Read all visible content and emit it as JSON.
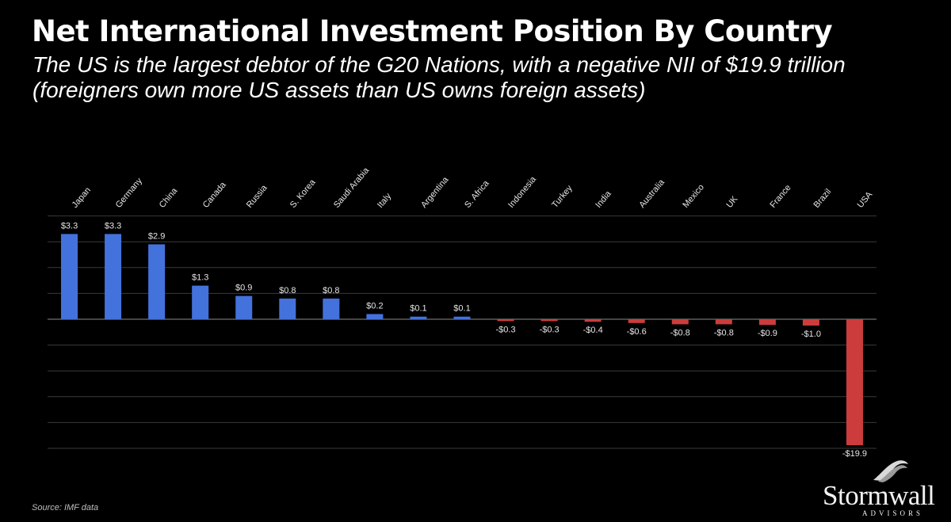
{
  "header": {
    "title": "Net International Investment Position By Country",
    "subtitle": "The US is the largest debtor of the G20 Nations, with a negative NII of $19.9 trillion (foreigners own more US assets than US owns foreign assets)"
  },
  "chart_data": {
    "type": "bar",
    "title": "Net International Investment Position By Country",
    "subtitle": "The US is the largest debtor of the G20 Nations, with a negative NII of $19.9 trillion (foreigners own more US assets than US owns foreign assets)",
    "xlabel": "",
    "ylabel": "",
    "unit": "trillion USD",
    "categories": [
      "Japan",
      "Germany",
      "China",
      "Canada",
      "Russia",
      "S. Korea",
      "Saudi Arabia",
      "Italy",
      "Argentina",
      "S. Africa",
      "Indonesia",
      "Turkey",
      "India",
      "Australia",
      "Mexico",
      "UK",
      "France",
      "Brazil",
      "USA"
    ],
    "values": [
      3.3,
      3.3,
      2.9,
      1.3,
      0.9,
      0.8,
      0.8,
      0.2,
      0.1,
      0.1,
      -0.3,
      -0.3,
      -0.4,
      -0.6,
      -0.8,
      -0.8,
      -0.9,
      -1.0,
      -19.9
    ],
    "data_labels": [
      "$3.3",
      "$3.3",
      "$2.9",
      "$1.3",
      "$0.9",
      "$0.8",
      "$0.8",
      "$0.2",
      "$0.1",
      "$0.1",
      "-$0.3",
      "-$0.3",
      "-$0.4",
      "-$0.6",
      "-$0.8",
      "-$0.8",
      "-$0.9",
      "-$1.0",
      "-$19.9"
    ],
    "grid": true,
    "legend": "none",
    "category_labels_position": "top, rotated",
    "colors": {
      "positive": "#4472dc",
      "negative": "#cc3c3c",
      "grid": "#3a3a3a",
      "axis": "#8c8c8c"
    }
  },
  "footer": {
    "source": "Source:  IMF data",
    "logo_name": "Stormwall",
    "logo_sub": "ADVISORS",
    "logo_icon": "wave-icon"
  }
}
